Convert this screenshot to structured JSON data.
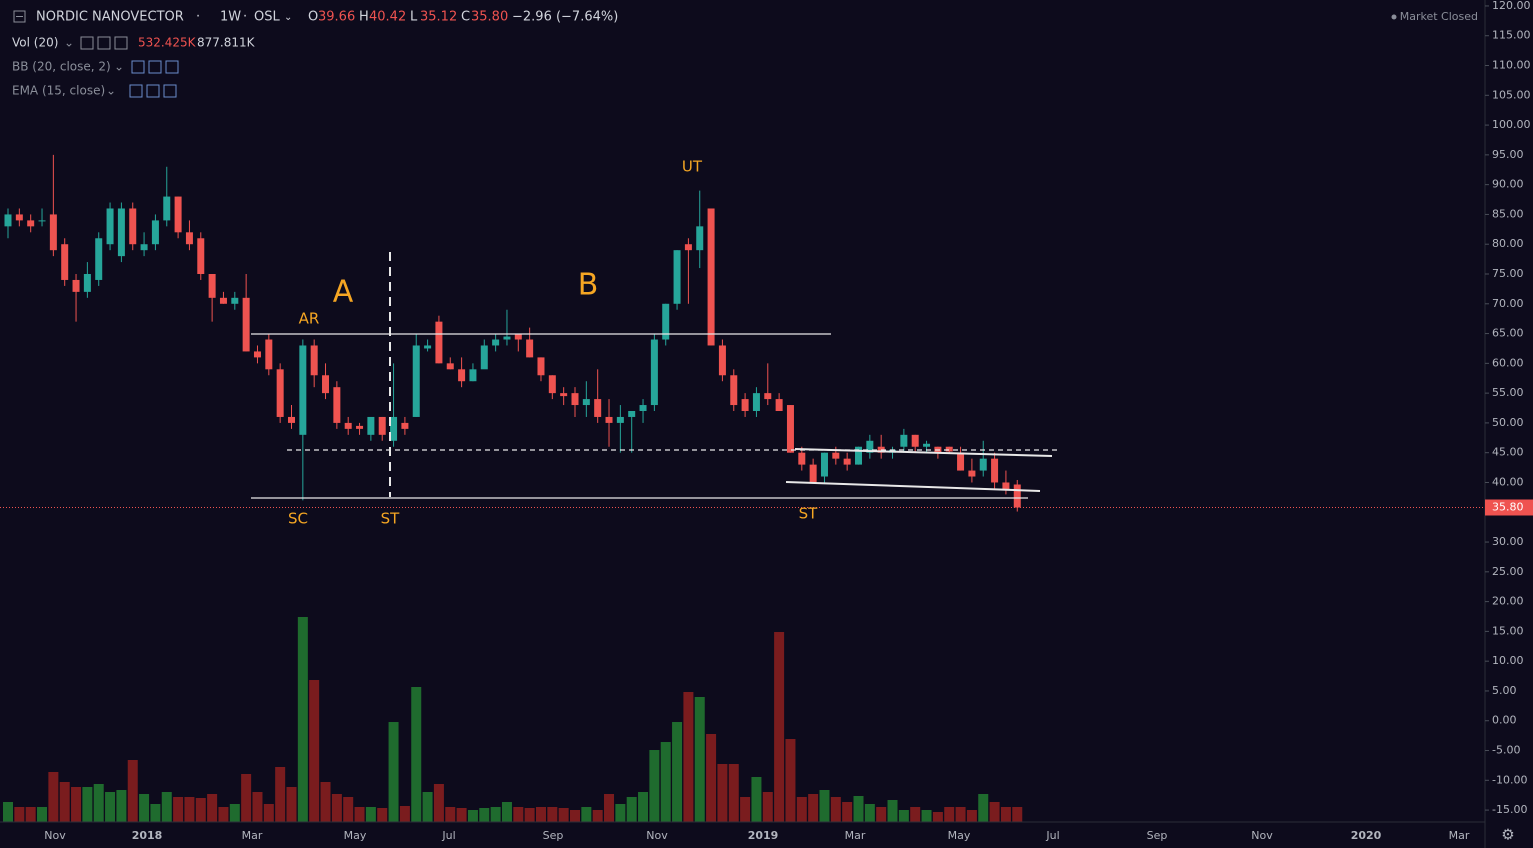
{
  "header": {
    "symbol": "NORDIC NANOVECTOR",
    "interval": "1W",
    "exchange": "OSL",
    "ohlc": [
      {
        "label": "O",
        "value": "39.66"
      },
      {
        "label": "H",
        "value": "40.42"
      },
      {
        "label": "L",
        "value": "35.12"
      },
      {
        "label": "C",
        "value": "35.80"
      }
    ],
    "change": "−2.96 (−7.64%)",
    "status": "Market Closed",
    "indicators": [
      {
        "name": "Vol (20)",
        "values": [
          "532.425K",
          "877.811K"
        ]
      },
      {
        "name": "BB (20, close, 2)"
      },
      {
        "name": "EMA (15, close)"
      }
    ]
  },
  "chart_data": {
    "type": "candlestick",
    "up_color": "#26a69a",
    "down_color": "#ef5350",
    "volume_up_color": "#1f6b2e",
    "volume_down_color": "#7a1c1e",
    "ylim": [
      -17,
      121
    ],
    "yticks": [
      {
        "value": -15,
        "label": "-15.00"
      },
      {
        "value": -10,
        "label": "-10.00"
      },
      {
        "value": -5,
        "label": "-5.00"
      },
      {
        "value": 0,
        "label": "0.00"
      },
      {
        "value": 5,
        "label": "5.00"
      },
      {
        "value": 10,
        "label": "10.00"
      },
      {
        "value": 15,
        "label": "15.00"
      },
      {
        "value": 20,
        "label": "20.00"
      },
      {
        "value": 25,
        "label": "25.00"
      },
      {
        "value": 30,
        "label": "30.00"
      },
      {
        "value": 35,
        "label": "35.00"
      },
      {
        "value": 40,
        "label": "40.00"
      },
      {
        "value": 45,
        "label": "45.00"
      },
      {
        "value": 50,
        "label": "50.00"
      },
      {
        "value": 55,
        "label": "55.00"
      },
      {
        "value": 60,
        "label": "60.00"
      },
      {
        "value": 65,
        "label": "65.00"
      },
      {
        "value": 70,
        "label": "70.00"
      },
      {
        "value": 75,
        "label": "75.00"
      },
      {
        "value": 80,
        "label": "80.00"
      },
      {
        "value": 85,
        "label": "85.00"
      },
      {
        "value": 90,
        "label": "90.00"
      },
      {
        "value": 95,
        "label": "95.00"
      },
      {
        "value": 100,
        "label": "100.00"
      },
      {
        "value": 105,
        "label": "105.00"
      },
      {
        "value": 110,
        "label": "110.00"
      },
      {
        "value": 115,
        "label": "115.00"
      },
      {
        "value": 120,
        "label": "120.00"
      }
    ],
    "x_labels": [
      "Nov",
      "2018",
      "Mar",
      "May",
      "Jul",
      "Sep",
      "Nov",
      "2019",
      "Mar",
      "May",
      "Jul",
      "Sep",
      "Nov",
      "2020",
      "Mar"
    ],
    "last_price": {
      "value": 35.8,
      "label": "35.80"
    },
    "annotations": [
      "A",
      "B",
      "AR",
      "SC",
      "ST",
      "UT",
      "ST"
    ],
    "open": [
      83,
      85,
      84,
      84,
      85,
      80,
      74,
      72,
      74,
      80,
      78,
      86,
      79,
      80,
      84,
      88,
      82,
      81,
      75,
      71,
      70,
      71,
      62,
      64,
      59,
      51,
      48,
      63,
      58,
      56,
      50,
      49.5,
      48,
      51,
      47,
      50,
      51,
      62.5,
      67,
      60,
      59,
      57,
      59,
      63,
      64,
      65,
      64,
      61,
      58,
      55,
      55,
      53,
      54,
      51,
      50,
      51,
      52,
      53,
      64,
      70,
      80,
      79,
      86,
      63,
      58,
      54,
      52,
      55,
      54,
      53,
      45,
      43,
      41,
      45,
      44,
      43,
      45,
      46,
      45,
      46,
      48,
      46,
      46,
      46,
      45,
      42,
      42,
      44,
      40,
      39.66
    ],
    "high": [
      86,
      86,
      85,
      86,
      95,
      81,
      75,
      77,
      82,
      87,
      87,
      87,
      82,
      85,
      93,
      88,
      84,
      82,
      75,
      72,
      72,
      75,
      63,
      65,
      60,
      53,
      64,
      64,
      60,
      57,
      51,
      50,
      51,
      51,
      60,
      51,
      65,
      64,
      68,
      61,
      61,
      60,
      64,
      65,
      69,
      65,
      66,
      61,
      58,
      56,
      56,
      57,
      59,
      54,
      53,
      52,
      54,
      65,
      70,
      79,
      81,
      89,
      86,
      64,
      59,
      55,
      56,
      60,
      55,
      53,
      46,
      44,
      45,
      46,
      45,
      46,
      48,
      48,
      46,
      49,
      48,
      47,
      46,
      46,
      46,
      44,
      47,
      45,
      42,
      40.42
    ],
    "low": [
      81,
      83,
      82,
      83,
      78,
      73,
      67,
      71,
      73,
      79,
      77,
      79,
      78,
      79,
      83,
      81,
      79,
      74,
      67,
      70,
      69,
      62,
      60,
      58,
      50,
      49,
      37,
      56,
      54,
      49,
      48,
      48,
      47,
      47,
      46,
      48,
      51,
      62,
      60,
      59,
      56,
      57,
      60,
      62,
      63,
      62,
      61,
      57,
      54,
      53,
      51,
      51,
      50,
      46,
      45,
      45,
      50,
      52,
      63,
      69,
      70,
      76,
      63,
      57,
      52,
      51,
      51,
      53,
      52,
      45,
      42,
      40,
      40,
      43,
      42,
      43,
      44,
      44,
      44,
      45,
      45,
      45,
      44,
      45,
      42,
      40,
      41,
      39,
      38,
      35.12
    ],
    "close": [
      85,
      84,
      83,
      84,
      79,
      74,
      72,
      75,
      81,
      86,
      86,
      80,
      80,
      84,
      88,
      82,
      80,
      75,
      71,
      70,
      71,
      62,
      61,
      59,
      51,
      50,
      63,
      58,
      55,
      50,
      49,
      49,
      51,
      48,
      51,
      49,
      63,
      63,
      60,
      59,
      57,
      59,
      63,
      64,
      64.5,
      64,
      61,
      58,
      55,
      54.5,
      53,
      54,
      51,
      50,
      51,
      52,
      53,
      64,
      70,
      79,
      79,
      83,
      63,
      58,
      53,
      52,
      55,
      54,
      52,
      45,
      43,
      40,
      45,
      44,
      43,
      46,
      47,
      45,
      45.5,
      48,
      46,
      46.5,
      45,
      45.2,
      42,
      41,
      44,
      40,
      38.8,
      35.8
    ],
    "volume": [
      710,
      533,
      533,
      533,
      1775,
      1420,
      1243,
      1243,
      1349,
      1065,
      1136,
      2201,
      994,
      639,
      1065,
      888,
      888,
      852,
      994,
      533,
      639,
      1704,
      1065,
      639,
      1953,
      1243,
      7278,
      5041,
      1420,
      994,
      888,
      533,
      533,
      497,
      3550,
      568,
      4793,
      1065,
      1349,
      533,
      497,
      426,
      497,
      533,
      710,
      533,
      497,
      533,
      533,
      497,
      426,
      533,
      426,
      994,
      639,
      888,
      1065,
      2556,
      2840,
      3550,
      4615,
      4438,
      3124,
      2059,
      2059,
      888,
      1598,
      1065,
      6745,
      2947,
      888,
      994,
      1136,
      888,
      710,
      923,
      639,
      533,
      781,
      426,
      533,
      426,
      355,
      533,
      533,
      426,
      994,
      710,
      533,
      532.425
    ]
  }
}
